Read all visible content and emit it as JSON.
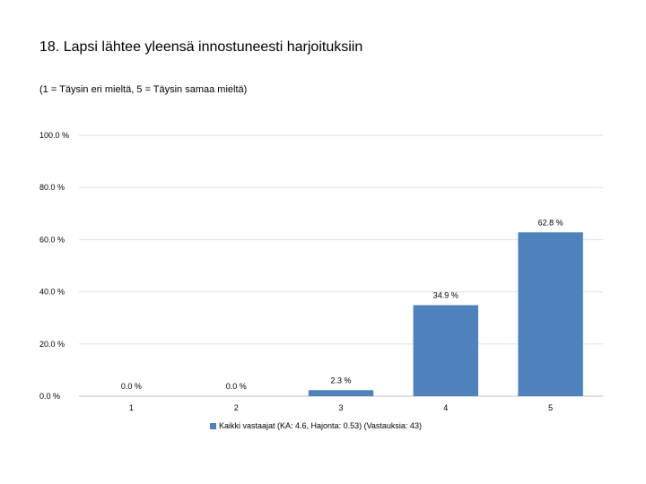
{
  "chart_data": {
    "type": "bar",
    "title": "18. Lapsi lähtee yleensä innostuneesti harjoituksiin",
    "subtitle": "(1 = Täysin eri mieltä, 5 = Täysin samaa mieltä)",
    "categories": [
      "1",
      "2",
      "3",
      "4",
      "5"
    ],
    "series": [
      {
        "name": "Kaikki vastaajat (KA: 4.6, Hajonta: 0.53) (Vastauksia: 43)",
        "values": [
          0.0,
          0.0,
          2.3,
          34.9,
          62.8
        ],
        "labels": [
          "0.0 %",
          "0.0 %",
          "2.3 %",
          "34.9 %",
          "62.8 %"
        ]
      }
    ],
    "ylim": [
      0,
      100
    ],
    "yticks": [
      0,
      20,
      40,
      60,
      80,
      100
    ],
    "ytick_labels": [
      "0.0 %",
      "20.0 %",
      "40.0 %",
      "60.0 %",
      "80.0 %",
      "100.0 %"
    ],
    "grid": true,
    "legend_position": "bottom",
    "colors": {
      "bar": "#4F81BD",
      "grid": "#D9E2EC"
    }
  }
}
